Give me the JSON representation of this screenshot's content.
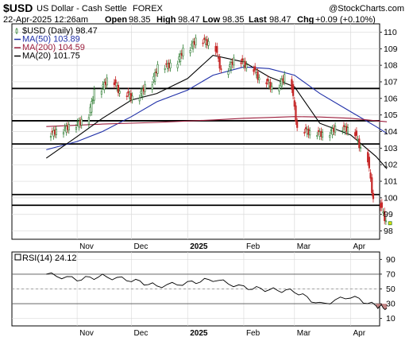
{
  "header": {
    "symbol": "$USD",
    "name": "US Dollar - Cash Settle",
    "exchange": "FOREX",
    "watermark": "@StockCharts.com",
    "date": "22-Apr-2025 12:26am",
    "open_label": "Open",
    "open": "98.35",
    "high_label": "High",
    "high": "98.47",
    "low_label": "Low",
    "low": "98.35",
    "last_label": "Last",
    "last": "98.47",
    "chg_label": "Chg",
    "chg": "+0.09 (+0.10%)"
  },
  "legend": [
    {
      "text": "$USD (Daily) 98.47",
      "color": "#000000",
      "kind": "candle"
    },
    {
      "text": "MA(50) 103.89",
      "color": "#1f2fa8",
      "kind": "line"
    },
    {
      "text": "MA(200) 104.59",
      "color": "#9c1e3c",
      "kind": "line"
    },
    {
      "text": "MA(20) 101.75",
      "color": "#000000",
      "kind": "line"
    }
  ],
  "rsi": {
    "label": "RSI(14) 24.12",
    "ticks": [
      "90",
      "70",
      "50",
      "30",
      "10"
    ]
  },
  "colors": {
    "up": "#2e7d32",
    "down": "#c62828",
    "ma50": "#1f2fa8",
    "ma200": "#9c1e3c",
    "ma20": "#000000",
    "grid": "#d9d9d9",
    "hline": "#000000",
    "rsi_fill": "#c08080"
  },
  "chart_data": [
    {
      "type": "candlestick",
      "title": "$USD US Dollar - Cash Settle FOREX",
      "ylim": [
        97.5,
        110.5
      ],
      "y_ticks": [
        98,
        99,
        100,
        101,
        102,
        103,
        104,
        105,
        106,
        107,
        108,
        109,
        110
      ],
      "x_labels": [
        "Nov",
        "Dec",
        "2025",
        "Feb",
        "Mar",
        "Apr"
      ],
      "horizontal_levels": [
        106.6,
        104.65,
        103.25,
        100.2,
        99.55
      ],
      "series": [
        {
          "name": "MA(50)",
          "x": [
            "Oct 15",
            "Nov 1",
            "Nov 15",
            "Dec 1",
            "Dec 15",
            "Jan 1",
            "Jan 15",
            "Feb 1",
            "Feb 15",
            "Mar 1",
            "Mar 15",
            "Apr 1",
            "Apr 15",
            "Apr 21"
          ],
          "values": [
            102.9,
            103.4,
            104.0,
            104.9,
            105.8,
            106.5,
            107.4,
            107.9,
            107.8,
            107.4,
            106.3,
            105.2,
            104.3,
            103.89
          ]
        },
        {
          "name": "MA(200)",
          "x": [
            "Oct 15",
            "Nov 15",
            "Dec 15",
            "Jan 15",
            "Feb 1",
            "Feb 15",
            "Mar 1",
            "Mar 15",
            "Apr 1",
            "Apr 15",
            "Apr 21"
          ],
          "values": [
            104.3,
            104.45,
            104.55,
            104.7,
            104.8,
            104.85,
            104.9,
            104.88,
            104.8,
            104.65,
            104.59
          ]
        },
        {
          "name": "MA(20)",
          "x": [
            "Oct 15",
            "Nov 1",
            "Nov 15",
            "Dec 1",
            "Dec 15",
            "Jan 1",
            "Jan 15",
            "Feb 1",
            "Feb 15",
            "Mar 1",
            "Mar 15",
            "Apr 1",
            "Apr 15",
            "Apr 21"
          ],
          "values": [
            102.4,
            103.7,
            104.8,
            105.9,
            106.3,
            107.2,
            108.6,
            108.2,
            107.3,
            106.7,
            104.5,
            103.8,
            102.5,
            101.75
          ]
        }
      ],
      "candles": {
        "x": [
          "Oct 21",
          "Oct 28",
          "Nov 4",
          "Nov 11",
          "Nov 18",
          "Nov 25",
          "Dec 2",
          "Dec 9",
          "Dec 16",
          "Dec 23",
          "Dec 30",
          "Jan 6",
          "Jan 13",
          "Jan 20",
          "Jan 27",
          "Feb 3",
          "Feb 10",
          "Feb 17",
          "Feb 24",
          "Mar 3",
          "Mar 10",
          "Mar 17",
          "Mar 24",
          "Mar 31",
          "Apr 7",
          "Apr 14",
          "Apr 21"
        ],
        "close": [
          104.0,
          104.3,
          104.6,
          106.4,
          107.1,
          106.3,
          106.0,
          106.7,
          107.9,
          108.0,
          108.9,
          109.5,
          109.3,
          107.6,
          108.3,
          107.9,
          107.1,
          106.6,
          107.3,
          104.1,
          103.9,
          103.8,
          104.2,
          104.1,
          102.9,
          99.8,
          98.47
        ]
      }
    },
    {
      "type": "line",
      "title": "RSI(14)",
      "ylim": [
        0,
        100
      ],
      "y_ticks": [
        90,
        70,
        50,
        30,
        10
      ],
      "x_labels": [
        "Nov",
        "Dec",
        "2025",
        "Feb",
        "Mar",
        "Apr"
      ],
      "reference_levels": [
        70,
        30
      ],
      "series": [
        {
          "name": "RSI(14)",
          "x": [
            "Oct 15",
            "Nov 1",
            "Nov 15",
            "Dec 1",
            "Dec 15",
            "Jan 1",
            "Jan 15",
            "Feb 1",
            "Feb 15",
            "Mar 1",
            "Mar 15",
            "Apr 1",
            "Apr 15",
            "Apr 21"
          ],
          "values": [
            70,
            63,
            67,
            62,
            54,
            58,
            63,
            52,
            49,
            47,
            29,
            40,
            27,
            24.12
          ]
        }
      ]
    }
  ]
}
